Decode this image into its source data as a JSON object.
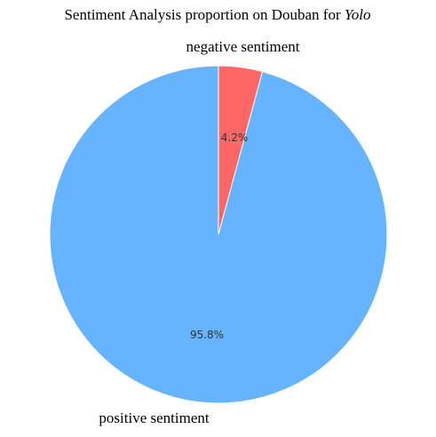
{
  "chart_data": {
    "type": "pie",
    "title": {
      "prefix": "Sentiment Analysis proportion on Douban for ",
      "italic": "Yolo"
    },
    "start_angle_deg": 90,
    "direction": "clockwise",
    "slices": [
      {
        "label": "negative sentiment",
        "value": 4.2,
        "pct_label": "4.2%",
        "color": "#ff6666"
      },
      {
        "label": "positive sentiment",
        "value": 95.8,
        "pct_label": "95.8%",
        "color": "#66b3ff"
      }
    ],
    "edge_color": "#ffffff"
  }
}
